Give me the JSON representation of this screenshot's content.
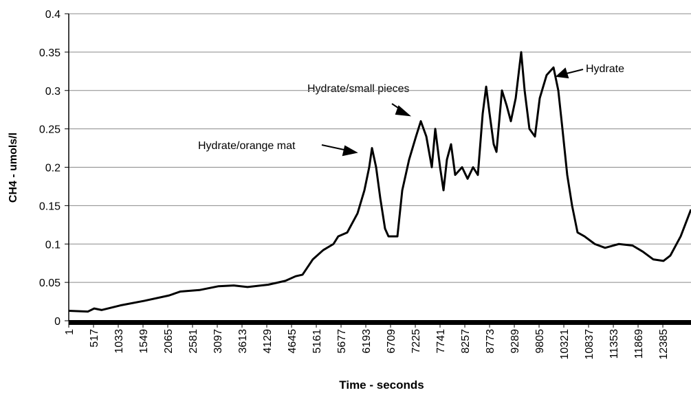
{
  "chart_data": {
    "type": "line",
    "xlabel": "Time - seconds",
    "ylabel": "CH4 - umols/l",
    "annotations": [
      "Hydrate/orange mat",
      "Hydrate/small pieces",
      "Hydrate"
    ],
    "x": [
      1,
      402,
      531,
      689,
      1076,
      1578,
      2094,
      2323,
      2724,
      3125,
      3441,
      3728,
      4158,
      4516,
      4731,
      4874,
      5089,
      5304,
      5519,
      5619,
      5806,
      6021,
      6164,
      6264,
      6322,
      6408,
      6494,
      6594,
      6666,
      6852,
      6953,
      7096,
      7239,
      7340,
      7455,
      7569,
      7641,
      7741,
      7813,
      7884,
      7970,
      8056,
      8200,
      8315,
      8429,
      8529,
      8630,
      8702,
      8773,
      8859,
      8917,
      9031,
      9131,
      9217,
      9318,
      9432,
      9504,
      9604,
      9719,
      9819,
      9962,
      10106,
      10206,
      10292,
      10392,
      10493,
      10607,
      10751,
      10966,
      11181,
      11468,
      11754,
      11969,
      12184,
      12399,
      12542,
      12757,
      12972
    ],
    "series": [
      {
        "name": "CH4",
        "color": "#000000",
        "values": [
          0.013,
          0.012,
          0.016,
          0.014,
          0.02,
          0.026,
          0.033,
          0.038,
          0.04,
          0.045,
          0.046,
          0.044,
          0.047,
          0.052,
          0.058,
          0.06,
          0.08,
          0.092,
          0.1,
          0.11,
          0.115,
          0.14,
          0.17,
          0.2,
          0.225,
          0.2,
          0.16,
          0.12,
          0.11,
          0.11,
          0.17,
          0.21,
          0.24,
          0.26,
          0.24,
          0.2,
          0.25,
          0.2,
          0.17,
          0.21,
          0.23,
          0.19,
          0.2,
          0.185,
          0.2,
          0.19,
          0.27,
          0.305,
          0.27,
          0.23,
          0.22,
          0.3,
          0.28,
          0.26,
          0.29,
          0.35,
          0.3,
          0.25,
          0.24,
          0.29,
          0.32,
          0.33,
          0.3,
          0.25,
          0.19,
          0.15,
          0.115,
          0.11,
          0.1,
          0.095,
          0.1,
          0.098,
          0.09,
          0.08,
          0.078,
          0.085,
          0.11,
          0.145
        ]
      }
    ],
    "xlim": [
      1,
      12972
    ],
    "xticks": [
      1,
      517,
      1033,
      1549,
      2065,
      2581,
      3097,
      3613,
      4129,
      4645,
      5161,
      5677,
      6193,
      6709,
      7225,
      7741,
      8257,
      8773,
      9289,
      9805,
      10321,
      10837,
      11353,
      11869,
      12385
    ],
    "ylim": [
      0,
      0.4
    ],
    "yticks": [
      0,
      0.05,
      0.1,
      0.15,
      0.2,
      0.25,
      0.3,
      0.35,
      0.4
    ],
    "grid": true
  }
}
